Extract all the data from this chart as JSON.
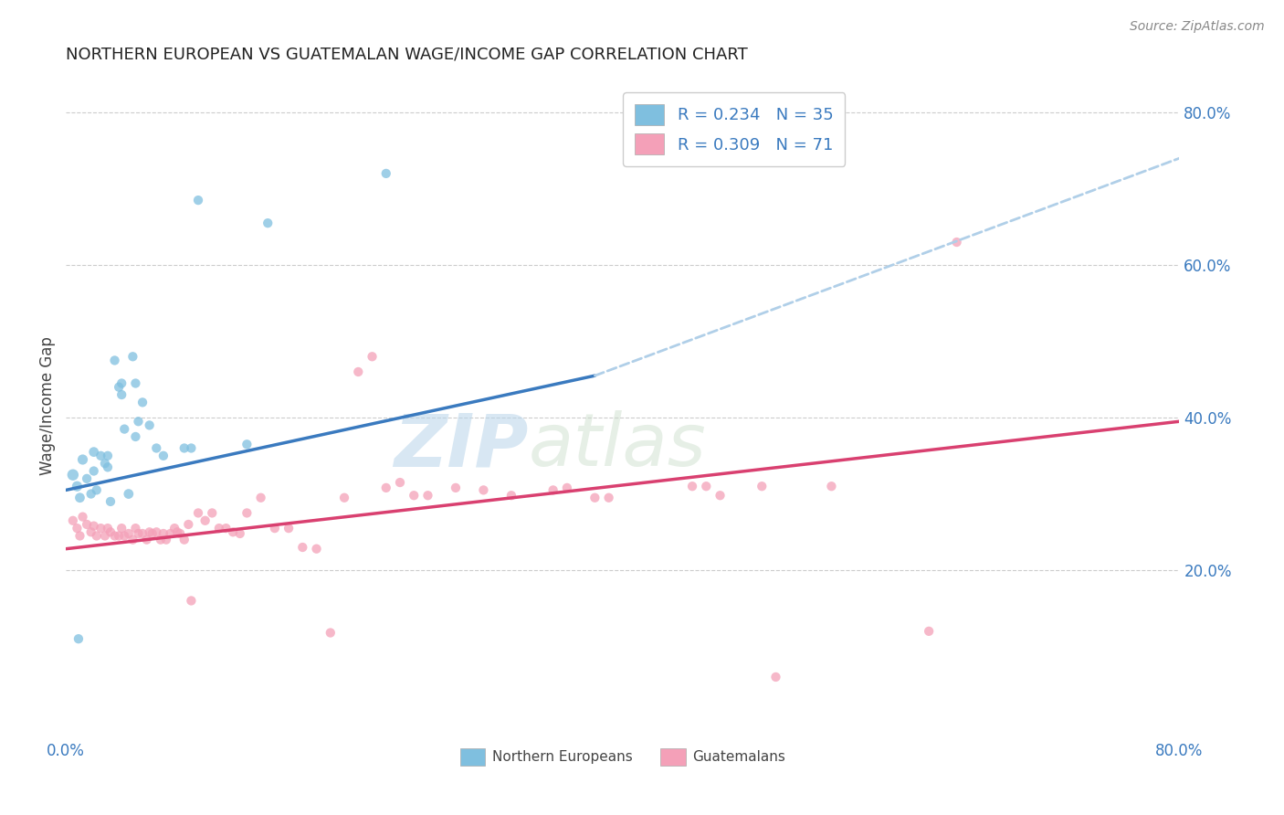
{
  "title": "NORTHERN EUROPEAN VS GUATEMALAN WAGE/INCOME GAP CORRELATION CHART",
  "source": "Source: ZipAtlas.com",
  "ylabel": "Wage/Income Gap",
  "right_yticks": [
    "20.0%",
    "40.0%",
    "60.0%",
    "80.0%"
  ],
  "right_ytick_vals": [
    0.2,
    0.4,
    0.6,
    0.8
  ],
  "legend_label_blue": "Northern Europeans",
  "legend_label_pink": "Guatemalans",
  "blue_color": "#7fbfdf",
  "pink_color": "#f4a0b8",
  "blue_line_color": "#3a7abf",
  "pink_line_color": "#d94070",
  "dashed_line_color": "#b0cfe8",
  "watermark_zip": "ZIP",
  "watermark_atlas": "atlas",
  "xlim": [
    0.0,
    0.8
  ],
  "ylim": [
    -0.02,
    0.85
  ],
  "blue_x": [
    0.005,
    0.008,
    0.01,
    0.012,
    0.015,
    0.018,
    0.02,
    0.02,
    0.022,
    0.025,
    0.028,
    0.03,
    0.03,
    0.032,
    0.035,
    0.038,
    0.04,
    0.04,
    0.042,
    0.045,
    0.048,
    0.05,
    0.05,
    0.052,
    0.055,
    0.06,
    0.065,
    0.07,
    0.085,
    0.09,
    0.095,
    0.13,
    0.145,
    0.23,
    0.009
  ],
  "blue_y": [
    0.325,
    0.31,
    0.295,
    0.345,
    0.32,
    0.3,
    0.355,
    0.33,
    0.305,
    0.35,
    0.34,
    0.35,
    0.335,
    0.29,
    0.475,
    0.44,
    0.445,
    0.43,
    0.385,
    0.3,
    0.48,
    0.445,
    0.375,
    0.395,
    0.42,
    0.39,
    0.36,
    0.35,
    0.36,
    0.36,
    0.685,
    0.365,
    0.655,
    0.72,
    0.11
  ],
  "blue_sizes": [
    80,
    65,
    60,
    65,
    55,
    55,
    60,
    55,
    55,
    55,
    55,
    55,
    55,
    55,
    55,
    55,
    55,
    55,
    55,
    60,
    55,
    55,
    55,
    55,
    55,
    55,
    55,
    55,
    55,
    55,
    55,
    55,
    55,
    55,
    55
  ],
  "pink_x": [
    0.005,
    0.008,
    0.01,
    0.012,
    0.015,
    0.018,
    0.02,
    0.022,
    0.025,
    0.028,
    0.03,
    0.032,
    0.035,
    0.038,
    0.04,
    0.042,
    0.045,
    0.048,
    0.05,
    0.052,
    0.055,
    0.058,
    0.06,
    0.062,
    0.065,
    0.068,
    0.07,
    0.072,
    0.075,
    0.078,
    0.08,
    0.082,
    0.085,
    0.088,
    0.09,
    0.095,
    0.1,
    0.105,
    0.11,
    0.115,
    0.12,
    0.125,
    0.13,
    0.14,
    0.15,
    0.16,
    0.17,
    0.18,
    0.19,
    0.2,
    0.21,
    0.22,
    0.23,
    0.24,
    0.25,
    0.26,
    0.28,
    0.3,
    0.32,
    0.35,
    0.36,
    0.38,
    0.39,
    0.45,
    0.46,
    0.47,
    0.5,
    0.51,
    0.55,
    0.62,
    0.64
  ],
  "pink_y": [
    0.265,
    0.255,
    0.245,
    0.27,
    0.26,
    0.25,
    0.258,
    0.245,
    0.255,
    0.245,
    0.255,
    0.25,
    0.245,
    0.245,
    0.255,
    0.245,
    0.248,
    0.24,
    0.255,
    0.248,
    0.248,
    0.24,
    0.25,
    0.248,
    0.25,
    0.24,
    0.248,
    0.24,
    0.248,
    0.255,
    0.25,
    0.248,
    0.24,
    0.26,
    0.16,
    0.275,
    0.265,
    0.275,
    0.255,
    0.255,
    0.25,
    0.248,
    0.275,
    0.295,
    0.255,
    0.255,
    0.23,
    0.228,
    0.118,
    0.295,
    0.46,
    0.48,
    0.308,
    0.315,
    0.298,
    0.298,
    0.308,
    0.305,
    0.298,
    0.305,
    0.308,
    0.295,
    0.295,
    0.31,
    0.31,
    0.298,
    0.31,
    0.06,
    0.31,
    0.12,
    0.63
  ],
  "pink_sizes": [
    55,
    55,
    55,
    55,
    55,
    55,
    55,
    55,
    55,
    55,
    55,
    55,
    55,
    55,
    55,
    55,
    55,
    55,
    55,
    55,
    55,
    55,
    55,
    55,
    55,
    55,
    55,
    55,
    55,
    55,
    55,
    55,
    55,
    55,
    55,
    55,
    55,
    55,
    55,
    55,
    55,
    55,
    55,
    55,
    55,
    55,
    55,
    55,
    55,
    55,
    55,
    55,
    55,
    55,
    55,
    55,
    55,
    55,
    55,
    55,
    55,
    55,
    55,
    55,
    55,
    55,
    55,
    55,
    55,
    55,
    55
  ],
  "blue_trend_x": [
    0.0,
    0.38
  ],
  "blue_trend_y": [
    0.305,
    0.455
  ],
  "pink_trend_x": [
    0.0,
    0.8
  ],
  "pink_trend_y": [
    0.228,
    0.395
  ],
  "dashed_trend_x": [
    0.38,
    0.8
  ],
  "dashed_trend_y": [
    0.455,
    0.74
  ]
}
